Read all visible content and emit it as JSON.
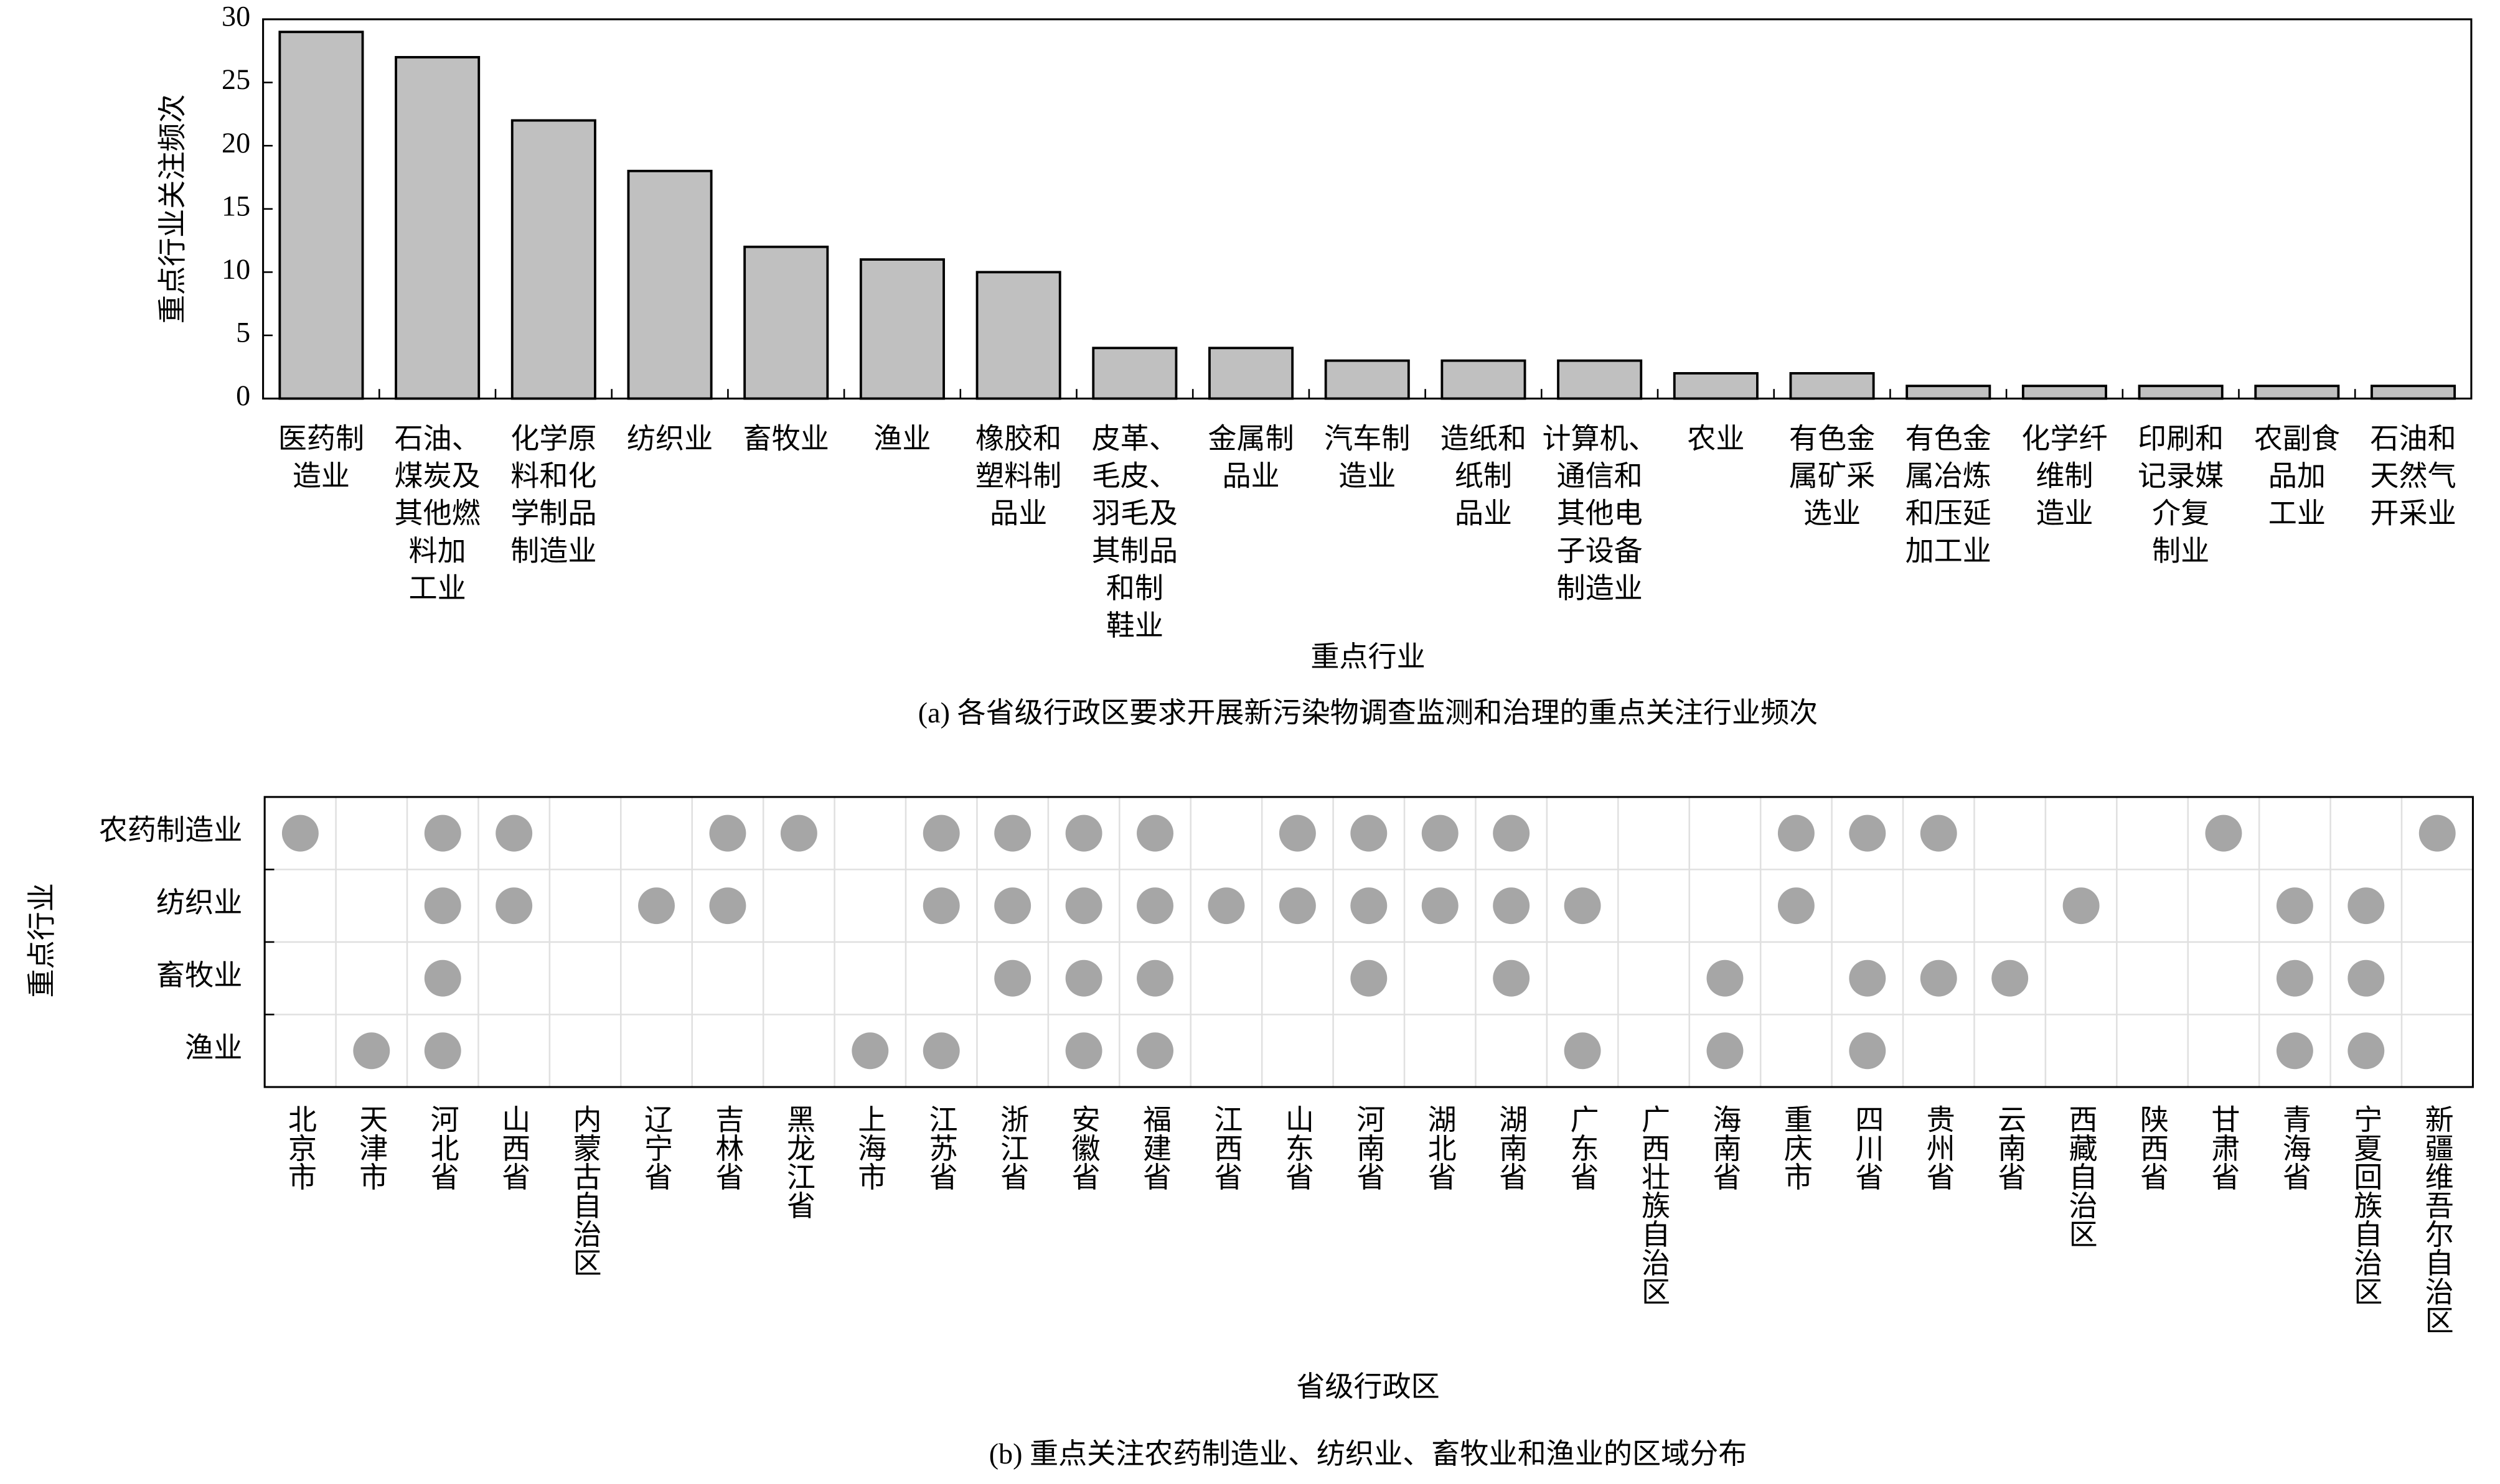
{
  "chart_data": [
    {
      "type": "bar",
      "y_label": "重点行业关注频次",
      "x_label": "重点行业",
      "caption": "(a) 各省级行政区要求开展新污染物调查监测和治理的重点关注行业频次",
      "categories": [
        [
          "医药制",
          "造业"
        ],
        [
          "石油、",
          "煤炭及",
          "其他燃",
          "料加",
          "工业"
        ],
        [
          "化学原",
          "料和化",
          "学制品",
          "制造业"
        ],
        [
          "纺织业"
        ],
        [
          "畜牧业"
        ],
        [
          "渔业"
        ],
        [
          "橡胶和",
          "塑料制",
          "品业"
        ],
        [
          "皮革、",
          "毛皮、",
          "羽毛及",
          "其制品",
          "和制",
          "鞋业"
        ],
        [
          "金属制",
          "品业"
        ],
        [
          "汽车制",
          "造业"
        ],
        [
          "造纸和",
          "纸制",
          "品业"
        ],
        [
          "计算机、",
          "通信和",
          "其他电",
          "子设备",
          "制造业"
        ],
        [
          "农业"
        ],
        [
          "有色金",
          "属矿采",
          "选业"
        ],
        [
          "有色金",
          "属冶炼",
          "和压延",
          "加工业"
        ],
        [
          "化学纤",
          "维制",
          "造业"
        ],
        [
          "印刷和",
          "记录媒",
          "介复",
          "制业"
        ],
        [
          "农副食",
          "品加",
          "工业"
        ],
        [
          "石油和",
          "天然气",
          "开采业"
        ]
      ],
      "values": [
        29,
        27,
        22,
        18,
        12,
        11,
        10,
        4,
        4,
        3,
        3,
        3,
        2,
        2,
        1,
        1,
        1,
        1,
        1
      ],
      "color": "#c0c0c0",
      "ylim": [
        0,
        30
      ],
      "yticks": [
        0,
        5,
        10,
        15,
        20,
        25,
        30
      ]
    },
    {
      "type": "dot-matrix",
      "y_label": "重点行业",
      "x_label": "省级行政区",
      "caption": "(b) 重点关注农药制造业、纺织业、畜牧业和渔业的区域分布",
      "categories": [
        "北京市",
        "天津市",
        "河北省",
        "山西省",
        "内蒙古自治区",
        "辽宁省",
        "吉林省",
        "黑龙江省",
        "上海市",
        "江苏省",
        "浙江省",
        "安徽省",
        "福建省",
        "江西省",
        "山东省",
        "河南省",
        "湖北省",
        "湖南省",
        "广东省",
        "广西壮族自治区",
        "海南省",
        "重庆市",
        "四川省",
        "贵州省",
        "云南省",
        "西藏自治区",
        "陕西省",
        "甘肃省",
        "青海省",
        "宁夏回族自治区",
        "新疆维吾尔自治区"
      ],
      "color": "#a6a6a6",
      "series": [
        {
          "name": "农药制造业",
          "values": [
            1,
            0,
            1,
            1,
            0,
            0,
            1,
            1,
            0,
            1,
            1,
            1,
            1,
            0,
            1,
            1,
            1,
            1,
            0,
            0,
            0,
            1,
            1,
            1,
            0,
            0,
            0,
            1,
            0,
            0,
            1
          ]
        },
        {
          "name": "纺织业",
          "values": [
            0,
            0,
            1,
            1,
            0,
            1,
            1,
            0,
            0,
            1,
            1,
            1,
            1,
            1,
            1,
            1,
            1,
            1,
            1,
            0,
            0,
            1,
            0,
            0,
            0,
            1,
            0,
            0,
            1,
            1,
            0
          ]
        },
        {
          "name": "畜牧业",
          "values": [
            0,
            0,
            1,
            0,
            0,
            0,
            0,
            0,
            0,
            0,
            1,
            1,
            1,
            0,
            0,
            1,
            0,
            1,
            0,
            0,
            1,
            0,
            1,
            1,
            1,
            0,
            0,
            0,
            1,
            1,
            0
          ]
        },
        {
          "name": "渔业",
          "values": [
            0,
            1,
            1,
            0,
            0,
            0,
            0,
            0,
            1,
            1,
            0,
            1,
            1,
            0,
            0,
            0,
            0,
            0,
            1,
            0,
            1,
            0,
            1,
            0,
            0,
            0,
            0,
            0,
            1,
            1,
            0
          ]
        }
      ]
    }
  ]
}
